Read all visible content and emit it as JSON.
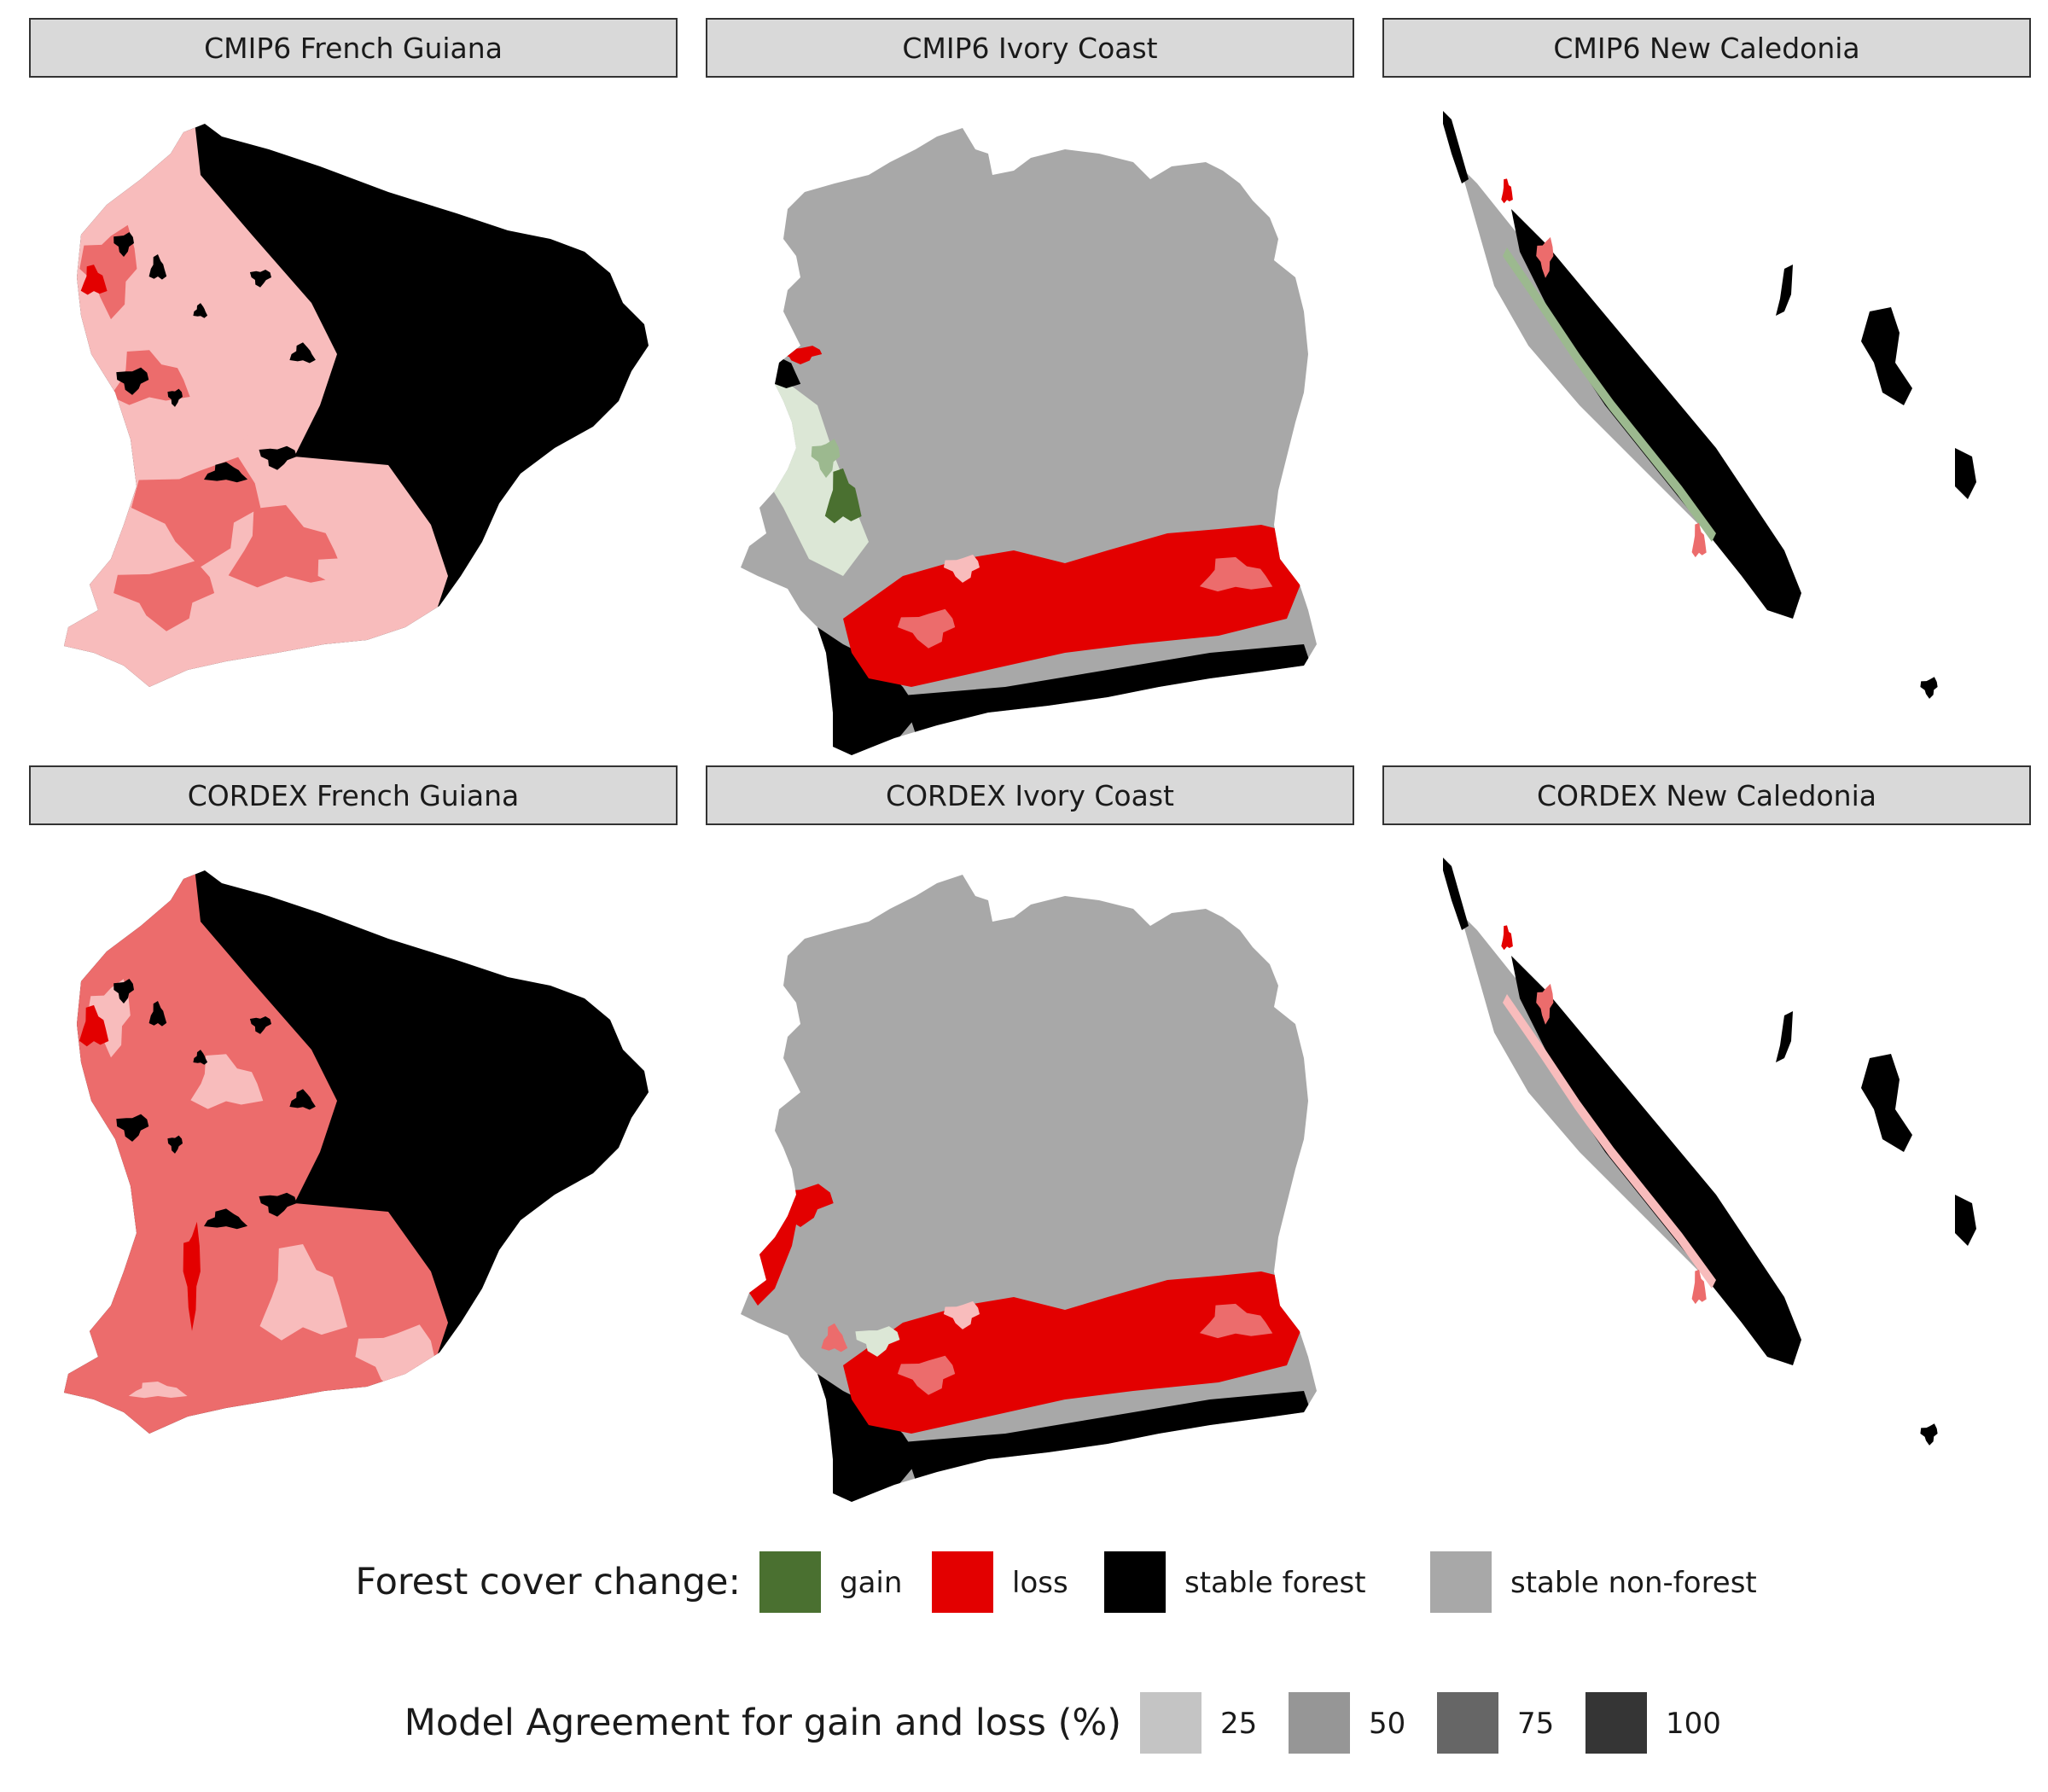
{
  "panels": [
    {
      "row": 0,
      "col": 0,
      "label": "CMIP6 French Guiana",
      "region": "french-guiana",
      "variant": "cmip6"
    },
    {
      "row": 0,
      "col": 1,
      "label": "CMIP6 Ivory Coast",
      "region": "ivory-coast",
      "variant": "cmip6"
    },
    {
      "row": 0,
      "col": 2,
      "label": "CMIP6 New Caledonia",
      "region": "new-caledonia",
      "variant": "cmip6"
    },
    {
      "row": 1,
      "col": 0,
      "label": "CORDEX French Guiana",
      "region": "french-guiana",
      "variant": "cordex"
    },
    {
      "row": 1,
      "col": 1,
      "label": "CORDEX Ivory Coast",
      "region": "ivory-coast",
      "variant": "cordex"
    },
    {
      "row": 1,
      "col": 2,
      "label": "CORDEX New Caledonia",
      "region": "new-caledonia",
      "variant": "cordex"
    }
  ],
  "legend": {
    "forest_cover": {
      "title": "Forest cover change:",
      "items": [
        {
          "label": "gain",
          "color": "#4a7030"
        },
        {
          "label": "loss",
          "color": "#e30000"
        },
        {
          "label": "stable forest",
          "color": "#000000"
        },
        {
          "label": "stable non-forest",
          "color": "#a8a8a8"
        }
      ]
    },
    "agreement": {
      "title": "Model Agreement for gain and loss (%)",
      "items": [
        {
          "label": "25",
          "color": "#c4c4c4"
        },
        {
          "label": "50",
          "color": "#969696"
        },
        {
          "label": "75",
          "color": "#666666"
        },
        {
          "label": "100",
          "color": "#353535"
        }
      ]
    }
  },
  "colors": {
    "strip_fill": "#d9d9d9",
    "strip_border": "#333333",
    "loss_light": "#f8bcbc",
    "loss_mid": "#ec6c6c",
    "loss_strong": "#e30000",
    "gain_light": "#dce7d6",
    "gain_mid": "#9cb98f",
    "gain_strong": "#4a7030",
    "stable_forest": "#000000",
    "stable_nonforest": "#a8a8a8"
  }
}
